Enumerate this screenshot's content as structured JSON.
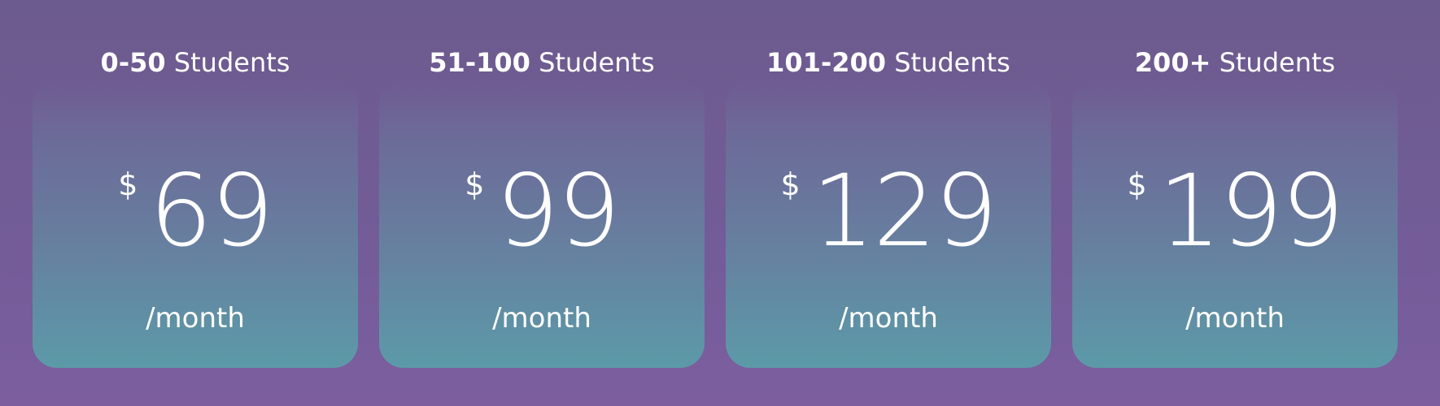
{
  "plans": [
    {
      "range": "0-50",
      "unit": "Students",
      "currency": "$",
      "price": "69",
      "period": "/month"
    },
    {
      "range": "51-100",
      "unit": "Students",
      "currency": "$",
      "price": "99",
      "period": "/month"
    },
    {
      "range": "101-200",
      "unit": "Students",
      "currency": "$",
      "price": "129",
      "period": "/month"
    },
    {
      "range": "200+",
      "unit": "Students",
      "currency": "$",
      "price": "199",
      "period": "/month"
    }
  ],
  "colors": {
    "background": "#735c98",
    "card_bottom": "#5c9aa8",
    "text": "#ffffff"
  }
}
